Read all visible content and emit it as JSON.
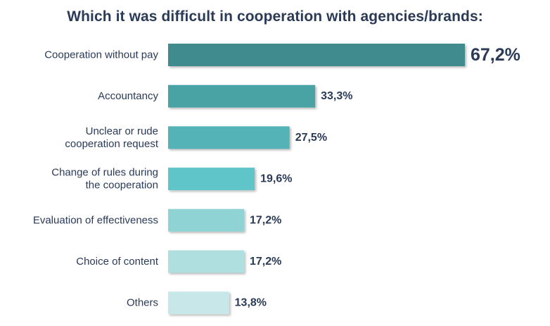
{
  "chart_data": {
    "type": "bar",
    "orientation": "horizontal",
    "title": "Which it was difficult in cooperation with agencies/brands:",
    "categories": [
      "Cooperation without pay",
      "Accountancy",
      "Unclear or rude cooperation request",
      "Change of rules during the cooperation",
      "Evaluation of effectiveness",
      "Choice of content",
      "Others"
    ],
    "category_lines": [
      [
        "Cooperation without pay"
      ],
      [
        "Accountancy"
      ],
      [
        "Unclear or rude",
        "cooperation request"
      ],
      [
        "Change of rules during",
        "the cooperation"
      ],
      [
        "Evaluation of effectiveness"
      ],
      [
        "Choice of content"
      ],
      [
        "Others"
      ]
    ],
    "values": [
      67.2,
      33.3,
      27.5,
      19.6,
      17.2,
      17.2,
      13.8
    ],
    "value_labels": [
      "67,2%",
      "33,3%",
      "27,5%",
      "19,6%",
      "17,2%",
      "17,2%",
      "13,8%"
    ],
    "xlim": [
      0,
      67.2
    ],
    "bar_colors": [
      "#3f8b8d",
      "#4aa3a5",
      "#53b3b6",
      "#5ec5c9",
      "#8fd3d4",
      "#b0dfe0",
      "#c8e7e8"
    ],
    "grid": false,
    "legend": "none"
  }
}
